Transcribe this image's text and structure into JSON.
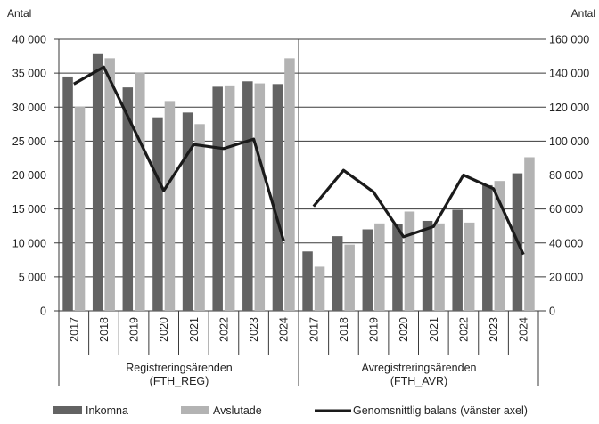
{
  "chart_data": {
    "type": "bar",
    "left_axis": {
      "unit": "Antal",
      "ticks": [
        "0",
        "5 000",
        "10 000",
        "15 000",
        "20 000",
        "25 000",
        "30 000",
        "35 000",
        "40 000"
      ],
      "ylim": [
        0,
        40000
      ]
    },
    "right_axis": {
      "unit": "Antal",
      "ticks": [
        "0",
        "20 000",
        "40 000",
        "60 000",
        "80 000",
        "100 000",
        "120 000",
        "140 000",
        "160 000"
      ],
      "ylim": [
        0,
        160000
      ]
    },
    "grid": true,
    "groups": [
      {
        "label_line1": "Registreringsärenden",
        "label_line2": "(FTH_REG)"
      },
      {
        "label_line1": "Avregistreringsärenden",
        "label_line2": "(FTH_AVR)"
      }
    ],
    "categories": [
      "2017",
      "2018",
      "2019",
      "2020",
      "2021",
      "2022",
      "2023",
      "2024",
      "2017",
      "2018",
      "2019",
      "2020",
      "2021",
      "2022",
      "2023",
      "2024"
    ],
    "bar_axis": [
      "left",
      "left",
      "left",
      "left",
      "left",
      "left",
      "left",
      "left",
      "right",
      "right",
      "right",
      "right",
      "right",
      "right",
      "right",
      "right"
    ],
    "series": [
      {
        "name": "Inkomna",
        "kind": "bar",
        "color": "#636363",
        "values": [
          34500,
          37800,
          32900,
          28500,
          29200,
          33000,
          33800,
          33400,
          35000,
          44000,
          48000,
          51000,
          53000,
          59500,
          74000,
          81000
        ]
      },
      {
        "name": "Avslutade",
        "kind": "bar",
        "color": "#b3b3b3",
        "values": [
          30100,
          37200,
          35100,
          30900,
          27500,
          33200,
          33500,
          37200,
          26000,
          39000,
          51500,
          58500,
          51500,
          52000,
          76500,
          90500
        ]
      },
      {
        "name": "Genomsnittlig balans (vänster axel)",
        "kind": "line",
        "axis": "left",
        "color": "#1a1a1a",
        "values": [
          33400,
          35900,
          26800,
          17700,
          24500,
          23900,
          25300,
          10300,
          15400,
          20700,
          17500,
          10900,
          12400,
          20000,
          18000,
          8300
        ]
      }
    ],
    "legend_position": "bottom"
  }
}
